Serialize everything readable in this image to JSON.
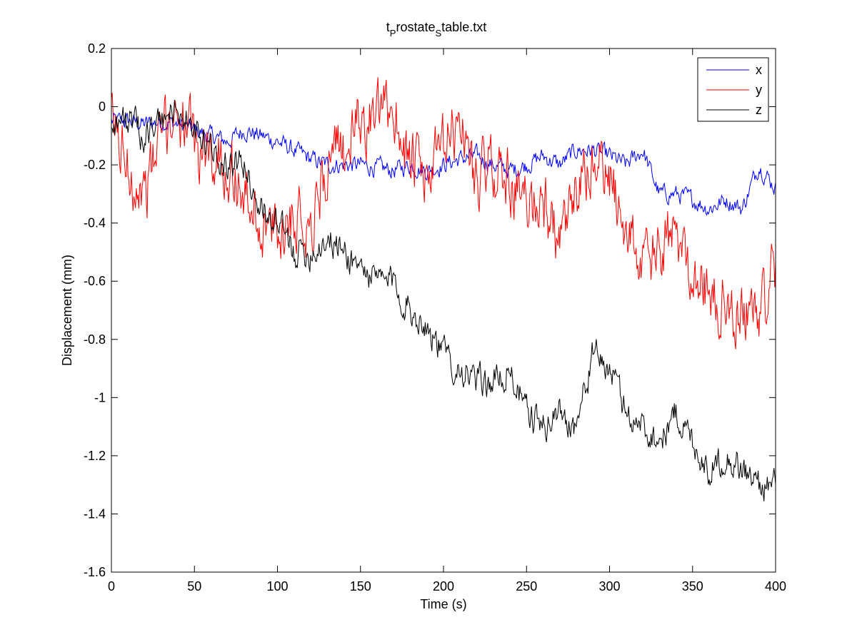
{
  "chart_data": {
    "type": "line",
    "title": "t_Prostate_Stable.txt",
    "title_parts": {
      "base1": "t",
      "sub1": "P",
      "base2": "rostate",
      "sub2": "S",
      "base3": "table.txt"
    },
    "xlabel": "Time (s)",
    "ylabel": "Displacement (mm)",
    "xlim": [
      0,
      400
    ],
    "ylim": [
      -1.6,
      0.2
    ],
    "xticks": [
      0,
      50,
      100,
      150,
      200,
      250,
      300,
      350,
      400
    ],
    "yticks": [
      0.2,
      0,
      -0.2,
      -0.4,
      -0.6,
      -0.8,
      -1,
      -1.2,
      -1.4,
      -1.6
    ],
    "grid": false,
    "legend_position": "top-right",
    "series": [
      {
        "name": "x",
        "color": "#0000ff",
        "x": [
          0,
          10,
          20,
          30,
          40,
          50,
          60,
          70,
          80,
          90,
          100,
          110,
          120,
          130,
          140,
          150,
          160,
          170,
          180,
          190,
          200,
          210,
          220,
          230,
          240,
          250,
          260,
          270,
          280,
          290,
          300,
          310,
          320,
          330,
          340,
          350,
          360,
          370,
          380,
          390,
          400
        ],
        "values": [
          -0.05,
          -0.05,
          -0.06,
          -0.05,
          -0.06,
          -0.08,
          -0.1,
          -0.12,
          -0.08,
          -0.1,
          -0.12,
          -0.15,
          -0.18,
          -0.2,
          -0.2,
          -0.2,
          -0.21,
          -0.22,
          -0.2,
          -0.22,
          -0.2,
          -0.18,
          -0.17,
          -0.2,
          -0.22,
          -0.2,
          -0.17,
          -0.2,
          -0.15,
          -0.15,
          -0.17,
          -0.2,
          -0.15,
          -0.3,
          -0.3,
          -0.32,
          -0.35,
          -0.32,
          -0.35,
          -0.2,
          -0.28
        ]
      },
      {
        "name": "y",
        "color": "#ff0000",
        "x": [
          0,
          10,
          20,
          30,
          40,
          50,
          60,
          70,
          80,
          90,
          100,
          110,
          120,
          130,
          140,
          150,
          160,
          170,
          180,
          190,
          200,
          210,
          220,
          230,
          240,
          250,
          260,
          270,
          280,
          290,
          300,
          310,
          320,
          330,
          340,
          350,
          360,
          370,
          380,
          390,
          400
        ],
        "values": [
          -0.05,
          -0.2,
          -0.3,
          -0.1,
          0.0,
          -0.15,
          -0.15,
          -0.2,
          -0.3,
          -0.4,
          -0.45,
          -0.35,
          -0.4,
          -0.2,
          -0.15,
          -0.05,
          -0.05,
          0.0,
          -0.2,
          -0.25,
          -0.15,
          -0.05,
          -0.25,
          -0.2,
          -0.25,
          -0.35,
          -0.3,
          -0.5,
          -0.3,
          -0.2,
          -0.25,
          -0.4,
          -0.55,
          -0.5,
          -0.45,
          -0.55,
          -0.65,
          -0.7,
          -0.7,
          -0.7,
          -0.55
        ]
      },
      {
        "name": "z",
        "color": "#000000",
        "x": [
          0,
          10,
          20,
          30,
          40,
          50,
          60,
          70,
          80,
          90,
          100,
          110,
          120,
          130,
          140,
          150,
          160,
          170,
          180,
          190,
          200,
          210,
          220,
          230,
          240,
          250,
          260,
          270,
          280,
          290,
          300,
          310,
          320,
          330,
          340,
          350,
          360,
          370,
          380,
          390,
          400
        ],
        "values": [
          -0.05,
          -0.05,
          -0.1,
          -0.05,
          0.0,
          -0.1,
          -0.15,
          -0.2,
          -0.2,
          -0.35,
          -0.4,
          -0.5,
          -0.5,
          -0.45,
          -0.5,
          -0.55,
          -0.6,
          -0.6,
          -0.7,
          -0.75,
          -0.85,
          -0.9,
          -0.95,
          -0.95,
          -0.9,
          -1.05,
          -1.1,
          -1.05,
          -1.1,
          -0.85,
          -0.9,
          -1.05,
          -1.1,
          -1.15,
          -1.05,
          -1.15,
          -1.25,
          -1.2,
          -1.25,
          -1.3,
          -1.3
        ]
      }
    ]
  }
}
